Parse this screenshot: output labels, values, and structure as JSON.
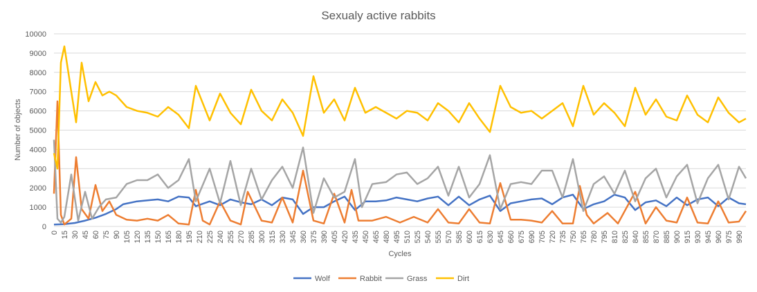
{
  "chart_data": {
    "type": "line",
    "title": "Sexualy active rabbits",
    "xlabel": "Cycles",
    "ylabel": "Number of objects",
    "xlim": [
      0,
      1000
    ],
    "ylim": [
      0,
      10000
    ],
    "y_ticks": [
      0,
      1000,
      2000,
      3000,
      4000,
      5000,
      6000,
      7000,
      8000,
      9000,
      10000
    ],
    "x_tick_step": 15,
    "x_tick_max": 990,
    "grid": true,
    "legend_position": "bottom",
    "series": [
      {
        "name": "Wolf",
        "color": "#4472C4",
        "points": [
          [
            0,
            100
          ],
          [
            15,
            120
          ],
          [
            30,
            180
          ],
          [
            45,
            300
          ],
          [
            60,
            450
          ],
          [
            75,
            650
          ],
          [
            90,
            900
          ],
          [
            100,
            1150
          ],
          [
            120,
            1300
          ],
          [
            135,
            1350
          ],
          [
            150,
            1400
          ],
          [
            165,
            1300
          ],
          [
            180,
            1550
          ],
          [
            195,
            1500
          ],
          [
            205,
            1050
          ],
          [
            225,
            1300
          ],
          [
            240,
            1100
          ],
          [
            255,
            1400
          ],
          [
            270,
            1250
          ],
          [
            285,
            1150
          ],
          [
            300,
            1400
          ],
          [
            315,
            1100
          ],
          [
            330,
            1500
          ],
          [
            345,
            1400
          ],
          [
            360,
            650
          ],
          [
            375,
            1000
          ],
          [
            390,
            1000
          ],
          [
            405,
            1300
          ],
          [
            420,
            1550
          ],
          [
            435,
            850
          ],
          [
            450,
            1300
          ],
          [
            465,
            1300
          ],
          [
            480,
            1350
          ],
          [
            495,
            1500
          ],
          [
            510,
            1400
          ],
          [
            525,
            1300
          ],
          [
            540,
            1450
          ],
          [
            555,
            1550
          ],
          [
            570,
            1100
          ],
          [
            585,
            1550
          ],
          [
            600,
            1100
          ],
          [
            615,
            1400
          ],
          [
            630,
            1600
          ],
          [
            645,
            800
          ],
          [
            660,
            1200
          ],
          [
            675,
            1300
          ],
          [
            690,
            1400
          ],
          [
            705,
            1450
          ],
          [
            720,
            1150
          ],
          [
            735,
            1500
          ],
          [
            750,
            1650
          ],
          [
            765,
            900
          ],
          [
            780,
            1150
          ],
          [
            795,
            1300
          ],
          [
            810,
            1650
          ],
          [
            825,
            1500
          ],
          [
            840,
            850
          ],
          [
            855,
            1250
          ],
          [
            870,
            1350
          ],
          [
            885,
            1050
          ],
          [
            900,
            1500
          ],
          [
            915,
            1100
          ],
          [
            930,
            1400
          ],
          [
            945,
            1500
          ],
          [
            960,
            1050
          ],
          [
            975,
            1500
          ],
          [
            990,
            1200
          ],
          [
            1000,
            1150
          ]
        ]
      },
      {
        "name": "Rabbit",
        "color": "#ED7D31",
        "points": [
          [
            0,
            1700
          ],
          [
            5,
            6500
          ],
          [
            10,
            600
          ],
          [
            15,
            100
          ],
          [
            25,
            400
          ],
          [
            32,
            3600
          ],
          [
            40,
            900
          ],
          [
            50,
            400
          ],
          [
            60,
            2150
          ],
          [
            70,
            800
          ],
          [
            80,
            1300
          ],
          [
            90,
            600
          ],
          [
            105,
            350
          ],
          [
            120,
            300
          ],
          [
            135,
            400
          ],
          [
            150,
            300
          ],
          [
            165,
            600
          ],
          [
            180,
            150
          ],
          [
            195,
            100
          ],
          [
            205,
            1900
          ],
          [
            215,
            300
          ],
          [
            225,
            100
          ],
          [
            240,
            1300
          ],
          [
            255,
            300
          ],
          [
            270,
            100
          ],
          [
            280,
            1800
          ],
          [
            300,
            300
          ],
          [
            315,
            200
          ],
          [
            330,
            1500
          ],
          [
            345,
            200
          ],
          [
            360,
            2900
          ],
          [
            375,
            300
          ],
          [
            390,
            150
          ],
          [
            405,
            1700
          ],
          [
            420,
            200
          ],
          [
            430,
            1900
          ],
          [
            440,
            300
          ],
          [
            460,
            300
          ],
          [
            480,
            500
          ],
          [
            500,
            200
          ],
          [
            520,
            500
          ],
          [
            540,
            200
          ],
          [
            555,
            900
          ],
          [
            570,
            200
          ],
          [
            585,
            150
          ],
          [
            600,
            900
          ],
          [
            615,
            200
          ],
          [
            630,
            150
          ],
          [
            645,
            2250
          ],
          [
            660,
            350
          ],
          [
            675,
            350
          ],
          [
            690,
            300
          ],
          [
            705,
            200
          ],
          [
            720,
            800
          ],
          [
            735,
            150
          ],
          [
            750,
            150
          ],
          [
            760,
            2100
          ],
          [
            770,
            600
          ],
          [
            780,
            150
          ],
          [
            800,
            700
          ],
          [
            815,
            150
          ],
          [
            840,
            1800
          ],
          [
            855,
            150
          ],
          [
            870,
            1000
          ],
          [
            885,
            300
          ],
          [
            900,
            200
          ],
          [
            915,
            1500
          ],
          [
            930,
            200
          ],
          [
            945,
            150
          ],
          [
            960,
            1300
          ],
          [
            975,
            200
          ],
          [
            990,
            250
          ],
          [
            1000,
            800
          ]
        ]
      },
      {
        "name": "Grass",
        "color": "#A5A5A5",
        "points": [
          [
            0,
            4500
          ],
          [
            5,
            400
          ],
          [
            10,
            200
          ],
          [
            15,
            500
          ],
          [
            25,
            2700
          ],
          [
            35,
            300
          ],
          [
            45,
            1800
          ],
          [
            55,
            400
          ],
          [
            65,
            1000
          ],
          [
            75,
            1400
          ],
          [
            90,
            1500
          ],
          [
            105,
            2200
          ],
          [
            120,
            2400
          ],
          [
            135,
            2400
          ],
          [
            150,
            2700
          ],
          [
            165,
            2000
          ],
          [
            180,
            2400
          ],
          [
            195,
            3500
          ],
          [
            205,
            1300
          ],
          [
            225,
            3000
          ],
          [
            240,
            1200
          ],
          [
            255,
            3400
          ],
          [
            270,
            1100
          ],
          [
            285,
            3000
          ],
          [
            300,
            1400
          ],
          [
            315,
            2400
          ],
          [
            330,
            3100
          ],
          [
            345,
            2000
          ],
          [
            360,
            4100
          ],
          [
            375,
            700
          ],
          [
            390,
            2500
          ],
          [
            405,
            1500
          ],
          [
            420,
            1800
          ],
          [
            435,
            3500
          ],
          [
            445,
            1000
          ],
          [
            460,
            2200
          ],
          [
            480,
            2300
          ],
          [
            495,
            2700
          ],
          [
            510,
            2800
          ],
          [
            525,
            2200
          ],
          [
            540,
            2500
          ],
          [
            555,
            3100
          ],
          [
            570,
            1600
          ],
          [
            585,
            3100
          ],
          [
            600,
            1500
          ],
          [
            615,
            2200
          ],
          [
            630,
            3700
          ],
          [
            645,
            900
          ],
          [
            660,
            2200
          ],
          [
            675,
            2300
          ],
          [
            690,
            2200
          ],
          [
            705,
            2900
          ],
          [
            720,
            2900
          ],
          [
            735,
            1500
          ],
          [
            750,
            3500
          ],
          [
            765,
            800
          ],
          [
            780,
            2200
          ],
          [
            795,
            2600
          ],
          [
            810,
            1700
          ],
          [
            825,
            2900
          ],
          [
            840,
            1300
          ],
          [
            855,
            2500
          ],
          [
            870,
            3000
          ],
          [
            885,
            1500
          ],
          [
            900,
            2600
          ],
          [
            915,
            3200
          ],
          [
            930,
            1200
          ],
          [
            945,
            2500
          ],
          [
            960,
            3200
          ],
          [
            975,
            1400
          ],
          [
            990,
            3100
          ],
          [
            1000,
            2500
          ]
        ]
      },
      {
        "name": "Dirt",
        "color": "#FFC000",
        "points": [
          [
            0,
            3800
          ],
          [
            5,
            3000
          ],
          [
            10,
            8500
          ],
          [
            15,
            9350
          ],
          [
            25,
            7000
          ],
          [
            32,
            5400
          ],
          [
            40,
            8500
          ],
          [
            50,
            6500
          ],
          [
            60,
            7500
          ],
          [
            70,
            6800
          ],
          [
            80,
            7000
          ],
          [
            90,
            6800
          ],
          [
            105,
            6200
          ],
          [
            120,
            6000
          ],
          [
            135,
            5900
          ],
          [
            150,
            5700
          ],
          [
            165,
            6200
          ],
          [
            180,
            5800
          ],
          [
            195,
            5100
          ],
          [
            205,
            7300
          ],
          [
            225,
            5500
          ],
          [
            240,
            6900
          ],
          [
            255,
            5900
          ],
          [
            270,
            5300
          ],
          [
            285,
            7100
          ],
          [
            300,
            6000
          ],
          [
            315,
            5500
          ],
          [
            330,
            6600
          ],
          [
            345,
            5900
          ],
          [
            360,
            4700
          ],
          [
            375,
            7800
          ],
          [
            390,
            5900
          ],
          [
            405,
            6600
          ],
          [
            420,
            5500
          ],
          [
            435,
            7200
          ],
          [
            450,
            5900
          ],
          [
            465,
            6200
          ],
          [
            480,
            5900
          ],
          [
            495,
            5600
          ],
          [
            510,
            6000
          ],
          [
            525,
            5900
          ],
          [
            540,
            5500
          ],
          [
            555,
            6400
          ],
          [
            570,
            6000
          ],
          [
            585,
            5400
          ],
          [
            600,
            6400
          ],
          [
            615,
            5600
          ],
          [
            630,
            4900
          ],
          [
            645,
            7300
          ],
          [
            660,
            6200
          ],
          [
            675,
            5900
          ],
          [
            690,
            6000
          ],
          [
            705,
            5600
          ],
          [
            720,
            6000
          ],
          [
            735,
            6400
          ],
          [
            750,
            5200
          ],
          [
            765,
            7300
          ],
          [
            780,
            5800
          ],
          [
            795,
            6400
          ],
          [
            810,
            5900
          ],
          [
            825,
            5200
          ],
          [
            840,
            7200
          ],
          [
            855,
            5800
          ],
          [
            870,
            6600
          ],
          [
            885,
            5700
          ],
          [
            900,
            5500
          ],
          [
            915,
            6800
          ],
          [
            930,
            5800
          ],
          [
            945,
            5400
          ],
          [
            960,
            6700
          ],
          [
            975,
            5900
          ],
          [
            990,
            5400
          ],
          [
            1000,
            5600
          ]
        ]
      }
    ]
  }
}
